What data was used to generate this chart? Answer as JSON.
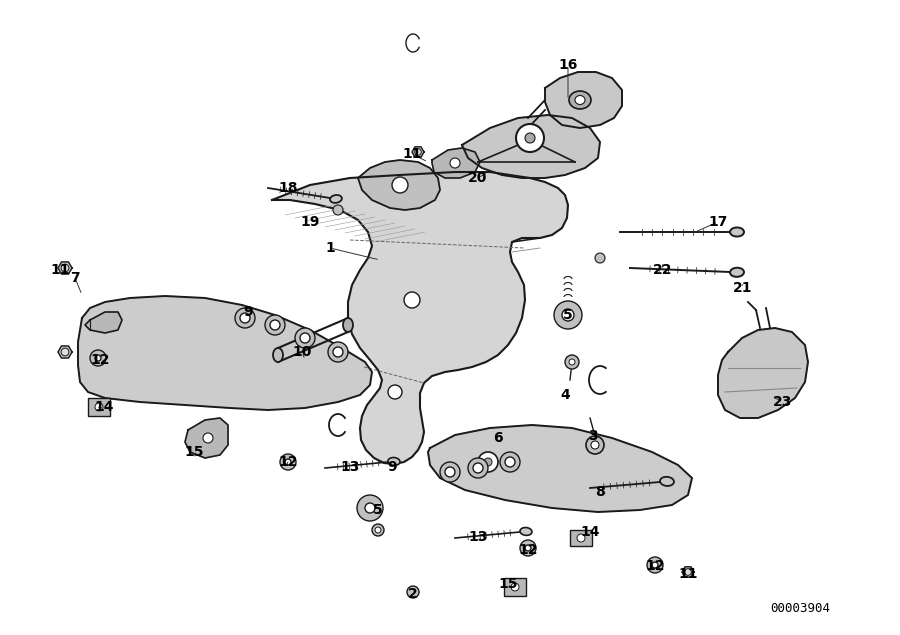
{
  "background_color": "#f0f0f0",
  "line_color": "#1a1a1a",
  "diagram_code": "00003904",
  "figsize": [
    9.0,
    6.35
  ],
  "dpi": 100,
  "labels": [
    [
      "1",
      330,
      248
    ],
    [
      "2",
      413,
      594
    ],
    [
      "3",
      593,
      436
    ],
    [
      "4",
      565,
      395
    ],
    [
      "5",
      568,
      315
    ],
    [
      "5",
      378,
      510
    ],
    [
      "6",
      498,
      438
    ],
    [
      "7",
      75,
      278
    ],
    [
      "8",
      600,
      492
    ],
    [
      "9",
      248,
      312
    ],
    [
      "9",
      392,
      467
    ],
    [
      "10",
      302,
      352
    ],
    [
      "11",
      60,
      270
    ],
    [
      "11",
      412,
      154
    ],
    [
      "11",
      688,
      574
    ],
    [
      "12",
      100,
      360
    ],
    [
      "12",
      288,
      462
    ],
    [
      "12",
      528,
      550
    ],
    [
      "12",
      655,
      566
    ],
    [
      "13",
      350,
      467
    ],
    [
      "13",
      478,
      537
    ],
    [
      "14",
      104,
      407
    ],
    [
      "14",
      590,
      532
    ],
    [
      "15",
      194,
      452
    ],
    [
      "15",
      508,
      584
    ],
    [
      "16",
      568,
      65
    ],
    [
      "17",
      718,
      222
    ],
    [
      "18",
      288,
      188
    ],
    [
      "19",
      310,
      222
    ],
    [
      "20",
      478,
      178
    ],
    [
      "21",
      743,
      288
    ],
    [
      "22",
      663,
      270
    ],
    [
      "23",
      783,
      402
    ]
  ],
  "leader_lines": [
    [
      330,
      248,
      380,
      260
    ],
    [
      568,
      65,
      568,
      100
    ],
    [
      718,
      222,
      695,
      232
    ],
    [
      412,
      154,
      428,
      162
    ],
    [
      478,
      178,
      488,
      172
    ],
    [
      288,
      188,
      295,
      192
    ],
    [
      310,
      222,
      318,
      220
    ],
    [
      75,
      278,
      82,
      295
    ],
    [
      248,
      312,
      248,
      318
    ],
    [
      302,
      352,
      305,
      360
    ],
    [
      60,
      270,
      66,
      272
    ],
    [
      100,
      360,
      100,
      355
    ],
    [
      104,
      407,
      96,
      408
    ],
    [
      194,
      452,
      195,
      456
    ],
    [
      568,
      315,
      568,
      322
    ],
    [
      565,
      395,
      570,
      392
    ],
    [
      593,
      436,
      595,
      440
    ],
    [
      498,
      438,
      502,
      444
    ],
    [
      600,
      492,
      605,
      493
    ],
    [
      590,
      532,
      588,
      534
    ],
    [
      378,
      510,
      380,
      514
    ],
    [
      392,
      467,
      393,
      470
    ],
    [
      350,
      467,
      348,
      470
    ],
    [
      288,
      462,
      287,
      464
    ],
    [
      413,
      594,
      415,
      596
    ],
    [
      508,
      584,
      510,
      590
    ],
    [
      528,
      550,
      533,
      552
    ],
    [
      478,
      537,
      477,
      540
    ],
    [
      663,
      270,
      662,
      262
    ],
    [
      743,
      288,
      742,
      282
    ],
    [
      783,
      402,
      773,
      397
    ],
    [
      655,
      566,
      657,
      570
    ],
    [
      688,
      574,
      686,
      576
    ]
  ]
}
